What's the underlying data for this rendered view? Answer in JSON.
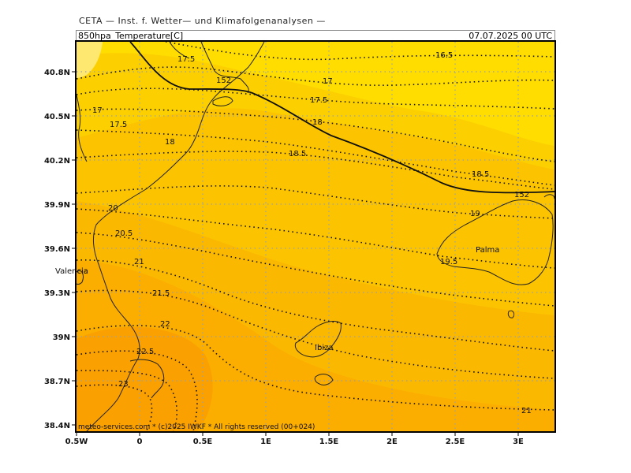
{
  "header": {
    "org": "CETA — Inst. f. Wetter— und Klimafolgenanalysen —",
    "parameter": "850hpa_Temperature[C]",
    "datetime": "07.07.2025  00 UTC"
  },
  "map": {
    "lon_ticks": [
      "0.5W",
      "0",
      "0.5E",
      "1E",
      "1.5E",
      "2E",
      "2.5E",
      "3E"
    ],
    "lat_ticks": [
      "40.8N",
      "40.5N",
      "40.2N",
      "39.9N",
      "39.6N",
      "39.3N",
      "39N",
      "38.7N",
      "38.4N"
    ],
    "places": [
      "Valencia",
      "Ibiza",
      "Palma"
    ],
    "footer": "meteo-services.com * (c)2025 IWKF * All rights reserved (00+024)"
  },
  "isotherm_labels": [
    {
      "text": "16.5"
    },
    {
      "text": "17"
    },
    {
      "text": "17.5"
    },
    {
      "text": "17.5"
    },
    {
      "text": "17"
    },
    {
      "text": "17.5"
    },
    {
      "text": "18"
    },
    {
      "text": "18"
    },
    {
      "text": "18.5"
    },
    {
      "text": "18.5"
    },
    {
      "text": "19"
    },
    {
      "text": "19.5"
    },
    {
      "text": "20"
    },
    {
      "text": "20.5"
    },
    {
      "text": "21"
    },
    {
      "text": "21.5"
    },
    {
      "text": "22"
    },
    {
      "text": "22.5"
    },
    {
      "text": "23"
    },
    {
      "text": "21"
    }
  ],
  "geopotential_labels": [
    {
      "text": "152"
    },
    {
      "text": "152"
    }
  ],
  "colors": {
    "t16": "#ffe870",
    "t17": "#ffdd00",
    "t18": "#fcd000",
    "t19": "#fcc400",
    "t20": "#fbb800",
    "t21": "#fbad00",
    "t22": "#faa000"
  }
}
